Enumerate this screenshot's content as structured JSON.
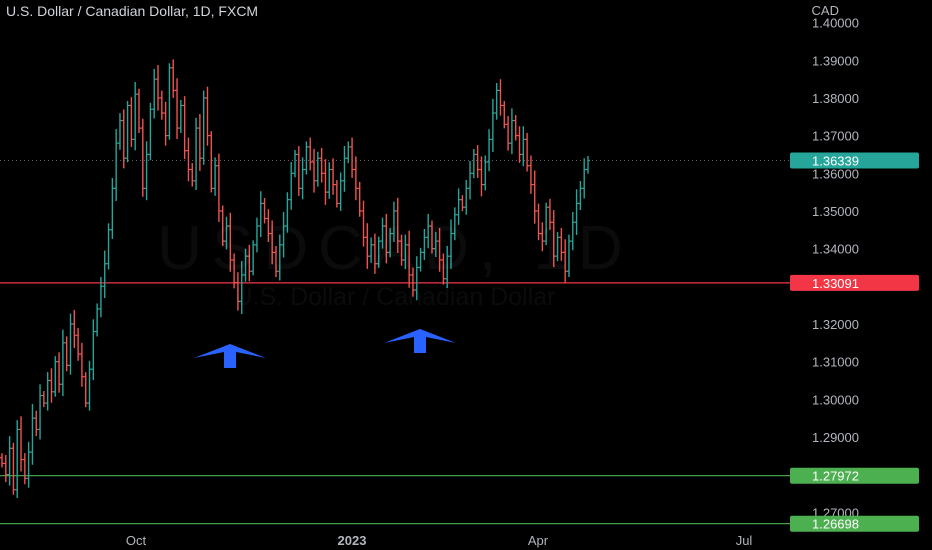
{
  "header": {
    "title": "U.S. Dollar / Canadian Dollar, 1D, FXCM",
    "currency": "CAD"
  },
  "watermark": {
    "symbol": "USDCAD, 1D",
    "name": "U.S. Dollar / Canadian Dollar"
  },
  "colors": {
    "up": "#26a69a",
    "down": "#ef5350",
    "support": "#f23645",
    "green_level": "#4caf50",
    "arrow": "#2962ff"
  },
  "chart_data": {
    "type": "ohlc",
    "title": "U.S. Dollar / Canadian Dollar, 1D, FXCM",
    "xlabel": "",
    "ylabel": "CAD",
    "ylim": [
      1.26,
      1.406
    ],
    "yticks": [
      "1.40000",
      "1.39000",
      "1.38000",
      "1.37000",
      "1.36000",
      "1.35000",
      "1.34000",
      "1.32000",
      "1.31000",
      "1.30000",
      "1.29000",
      "1.27000"
    ],
    "xticks": [
      "Oct",
      "2023",
      "Apr",
      "Jul"
    ],
    "grid": false,
    "legend": "none",
    "last_price": {
      "value": 1.36339,
      "label": "1.36339"
    },
    "horizontal_levels": [
      {
        "value": 1.33091,
        "label": "1.33091",
        "color": "#f23645"
      },
      {
        "value": 1.27972,
        "label": "1.27972",
        "color": "#4caf50"
      },
      {
        "value": 1.26698,
        "label": "1.26698",
        "color": "#4caf50"
      }
    ],
    "annotations": [
      {
        "type": "arrow-up",
        "near": "first bottom (Nov)"
      },
      {
        "type": "arrow-up",
        "near": "second bottom (Feb)"
      }
    ],
    "closes": [
      1.283,
      1.28,
      1.287,
      1.276,
      1.292,
      1.284,
      1.279,
      1.286,
      1.295,
      1.292,
      1.301,
      1.299,
      1.305,
      1.302,
      1.31,
      1.304,
      1.315,
      1.309,
      1.32,
      1.317,
      1.312,
      1.306,
      1.299,
      1.308,
      1.318,
      1.324,
      1.33,
      1.336,
      1.345,
      1.356,
      1.368,
      1.374,
      1.364,
      1.378,
      1.369,
      1.381,
      1.372,
      1.356,
      1.365,
      1.377,
      1.385,
      1.38,
      1.376,
      1.37,
      1.388,
      1.382,
      1.372,
      1.378,
      1.366,
      1.361,
      1.358,
      1.372,
      1.364,
      1.38,
      1.37,
      1.356,
      1.362,
      1.35,
      1.342,
      1.346,
      1.337,
      1.331,
      1.326,
      1.333,
      1.338,
      1.334,
      1.341,
      1.346,
      1.352,
      1.348,
      1.344,
      1.339,
      1.334,
      1.341,
      1.346,
      1.353,
      1.36,
      1.365,
      1.356,
      1.361,
      1.367,
      1.363,
      1.358,
      1.364,
      1.36,
      1.355,
      1.361,
      1.357,
      1.352,
      1.358,
      1.364,
      1.367,
      1.361,
      1.356,
      1.35,
      1.343,
      1.338,
      1.341,
      1.336,
      1.342,
      1.346,
      1.339,
      1.344,
      1.35,
      1.342,
      1.337,
      1.341,
      1.333,
      1.329,
      1.335,
      1.339,
      1.343,
      1.346,
      1.34,
      1.342,
      1.337,
      1.332,
      1.338,
      1.344,
      1.349,
      1.353,
      1.351,
      1.356,
      1.36,
      1.365,
      1.361,
      1.357,
      1.363,
      1.369,
      1.376,
      1.382,
      1.378,
      1.373,
      1.368,
      1.374,
      1.37,
      1.365,
      1.369,
      1.362,
      1.357,
      1.35,
      1.344,
      1.342,
      1.351,
      1.347,
      1.338,
      1.343,
      1.339,
      1.334,
      1.342,
      1.347,
      1.352,
      1.356,
      1.361,
      1.3634
    ]
  }
}
